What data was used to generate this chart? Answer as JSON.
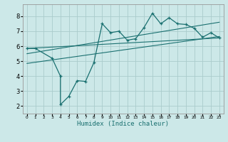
{
  "xlabel": "Humidex (Indice chaleur)",
  "ylabel": "",
  "xlim": [
    -0.5,
    23.5
  ],
  "ylim": [
    1.5,
    8.8
  ],
  "xticks": [
    0,
    1,
    2,
    3,
    4,
    5,
    6,
    7,
    8,
    9,
    10,
    11,
    12,
    13,
    14,
    15,
    16,
    17,
    18,
    19,
    20,
    21,
    22,
    23
  ],
  "yticks": [
    2,
    3,
    4,
    5,
    6,
    7,
    8
  ],
  "bg_color": "#cce8e8",
  "grid_color": "#aacccc",
  "line_color": "#1a7070",
  "data_x": [
    0,
    1,
    3,
    4,
    4,
    5,
    6,
    7,
    8,
    9,
    10,
    11,
    12,
    13,
    14,
    15,
    16,
    17,
    18,
    19,
    20,
    21,
    22,
    23
  ],
  "data_y": [
    5.85,
    5.85,
    5.2,
    4.0,
    2.1,
    2.65,
    3.7,
    3.65,
    4.9,
    7.5,
    6.9,
    7.0,
    6.4,
    6.5,
    7.25,
    8.2,
    7.5,
    7.9,
    7.5,
    7.45,
    7.2,
    6.6,
    6.9,
    6.55
  ],
  "trend1_x": [
    0,
    23
  ],
  "trend1_y": [
    5.85,
    6.55
  ],
  "trend2_x": [
    0,
    23
  ],
  "trend2_y": [
    5.5,
    7.6
  ],
  "trend3_x": [
    0,
    23
  ],
  "trend3_y": [
    4.85,
    6.65
  ]
}
